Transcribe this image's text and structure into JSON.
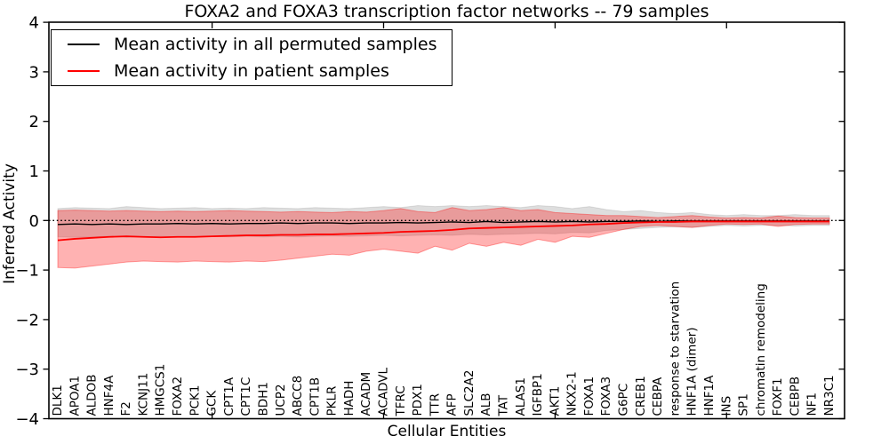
{
  "figure": {
    "title": "FOXA2 and FOXA3 transcription factor networks -- 79 samples"
  },
  "legend": {
    "entries": [
      {
        "label": "Mean activity in all permuted samples",
        "color": "#000000"
      },
      {
        "label": "Mean activity in patient samples",
        "color": "#ff0000"
      }
    ]
  },
  "chart_data": {
    "type": "line",
    "title": "FOXA2 and FOXA3 transcription factor networks -- 79 samples",
    "xlabel": "Cellular Entities",
    "ylabel": "Inferred Activity",
    "ylim": [
      -4,
      4
    ],
    "yticks": [
      -4,
      -3,
      -2,
      -1,
      0,
      1,
      2,
      3,
      4
    ],
    "grid": false,
    "legend_position": "upper left",
    "categories": [
      "DLK1",
      "APOA1",
      "ALDOB",
      "HNF4A",
      "F2",
      "KCNJ11",
      "HMGCS1",
      "FOXA2",
      "PCK1",
      "GCK",
      "CPT1A",
      "CPT1C",
      "BDH1",
      "UCP2",
      "ABCC8",
      "CPT1B",
      "PKLR",
      "HADH",
      "ACADM",
      "ACADVL",
      "TFRC",
      "PDX1",
      "TTR",
      "AFP",
      "SLC2A2",
      "ALB",
      "TAT",
      "ALAS1",
      "IGFBP1",
      "AKT1",
      "NKX2-1",
      "FOXA1",
      "FOXA3",
      "G6PC",
      "CREB1",
      "CEBPA",
      "response to starvation",
      "HNF1A (dimer)",
      "HNF1A",
      "INS",
      "SP1",
      "chromatin remodeling",
      "FOXF1",
      "CEBPB",
      "NF1",
      "NR3C1"
    ],
    "series": [
      {
        "name": "Mean activity in all permuted samples",
        "color": "#000000",
        "values": [
          -0.08,
          -0.07,
          -0.08,
          -0.07,
          -0.08,
          -0.07,
          -0.07,
          -0.06,
          -0.07,
          -0.06,
          -0.07,
          -0.06,
          -0.06,
          -0.05,
          -0.06,
          -0.05,
          -0.05,
          -0.06,
          -0.05,
          -0.05,
          -0.04,
          -0.05,
          -0.04,
          -0.03,
          -0.04,
          -0.02,
          -0.04,
          -0.03,
          -0.02,
          -0.03,
          -0.02,
          -0.03,
          -0.02,
          -0.02,
          -0.01,
          -0.02,
          -0.01,
          -0.01,
          -0.01,
          -0.01,
          -0.01,
          -0.01,
          -0.01,
          -0.01,
          -0.01,
          -0.01
        ]
      },
      {
        "name": "Mean activity in patient samples",
        "color": "#ff0000",
        "values": [
          -0.4,
          -0.37,
          -0.35,
          -0.33,
          -0.32,
          -0.33,
          -0.34,
          -0.33,
          -0.33,
          -0.32,
          -0.31,
          -0.3,
          -0.3,
          -0.29,
          -0.29,
          -0.28,
          -0.28,
          -0.27,
          -0.26,
          -0.25,
          -0.23,
          -0.22,
          -0.21,
          -0.19,
          -0.16,
          -0.15,
          -0.14,
          -0.13,
          -0.12,
          -0.11,
          -0.1,
          -0.08,
          -0.07,
          -0.05,
          -0.04,
          -0.03,
          -0.03,
          -0.02,
          -0.02,
          -0.02,
          -0.02,
          -0.02,
          -0.02,
          -0.02,
          -0.02,
          -0.02
        ]
      }
    ],
    "bands": [
      {
        "name": "permuted samples range",
        "color": "rgba(0,0,0,0.13)",
        "edge_color": "rgba(0,0,0,0.10)",
        "upper": [
          0.24,
          0.26,
          0.25,
          0.24,
          0.28,
          0.26,
          0.24,
          0.25,
          0.26,
          0.24,
          0.25,
          0.24,
          0.26,
          0.25,
          0.24,
          0.26,
          0.25,
          0.24,
          0.26,
          0.28,
          0.26,
          0.3,
          0.28,
          0.3,
          0.28,
          0.3,
          0.28,
          0.26,
          0.3,
          0.28,
          0.24,
          0.28,
          0.22,
          0.18,
          0.2,
          0.16,
          0.14,
          0.16,
          0.12,
          0.1,
          0.12,
          0.1,
          0.1,
          0.12,
          0.1,
          0.1
        ],
        "lower": [
          -0.33,
          -0.34,
          -0.33,
          -0.32,
          -0.34,
          -0.33,
          -0.32,
          -0.33,
          -0.34,
          -0.32,
          -0.33,
          -0.32,
          -0.33,
          -0.32,
          -0.33,
          -0.32,
          -0.31,
          -0.32,
          -0.31,
          -0.3,
          -0.31,
          -0.3,
          -0.29,
          -0.3,
          -0.28,
          -0.29,
          -0.28,
          -0.27,
          -0.26,
          -0.27,
          -0.24,
          -0.25,
          -0.2,
          -0.18,
          -0.16,
          -0.14,
          -0.13,
          -0.14,
          -0.12,
          -0.1,
          -0.11,
          -0.1,
          -0.1,
          -0.11,
          -0.1,
          -0.1
        ]
      },
      {
        "name": "patient samples range",
        "color": "rgba(255,0,0,0.30)",
        "edge_color": "rgba(255,0,0,0.35)",
        "upper": [
          0.2,
          0.21,
          0.2,
          0.19,
          0.2,
          0.19,
          0.18,
          0.19,
          0.18,
          0.19,
          0.2,
          0.19,
          0.18,
          0.17,
          0.18,
          0.17,
          0.16,
          0.18,
          0.17,
          0.2,
          0.24,
          0.18,
          0.16,
          0.26,
          0.2,
          0.22,
          0.26,
          0.2,
          0.22,
          0.16,
          0.14,
          0.12,
          0.1,
          0.1,
          0.08,
          0.06,
          0.08,
          0.1,
          0.07,
          0.05,
          0.06,
          0.05,
          0.09,
          0.06,
          0.05,
          0.05
        ],
        "lower": [
          -0.95,
          -0.96,
          -0.92,
          -0.88,
          -0.84,
          -0.82,
          -0.83,
          -0.84,
          -0.82,
          -0.83,
          -0.84,
          -0.82,
          -0.83,
          -0.8,
          -0.76,
          -0.72,
          -0.68,
          -0.7,
          -0.62,
          -0.58,
          -0.62,
          -0.66,
          -0.52,
          -0.6,
          -0.46,
          -0.52,
          -0.44,
          -0.5,
          -0.38,
          -0.44,
          -0.32,
          -0.34,
          -0.26,
          -0.18,
          -0.12,
          -0.1,
          -0.12,
          -0.14,
          -0.1,
          -0.07,
          -0.08,
          -0.07,
          -0.12,
          -0.08,
          -0.07,
          -0.07
        ]
      }
    ],
    "reference_line": {
      "y": 0,
      "style": "dotted",
      "color": "#000000"
    }
  }
}
